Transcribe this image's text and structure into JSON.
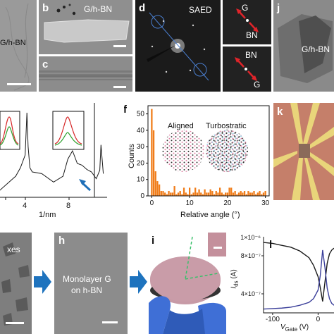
{
  "panels": {
    "a": {
      "text": "G/h-BN"
    },
    "b": {
      "label": "b",
      "text": "G/h-BN"
    },
    "c": {
      "label": "c"
    },
    "d": {
      "label": "d",
      "text": "SAED",
      "inset_top": {
        "upper": "G",
        "lower": "BN"
      },
      "inset_bottom": {
        "upper": "BN",
        "lower": "G"
      }
    },
    "j": {
      "label": "j",
      "text": "G/h-BN"
    },
    "e": {
      "xlabel": "1/nm",
      "ticks": [
        "4",
        "8"
      ]
    },
    "f": {
      "label": "f",
      "ylabel": "Counts",
      "xlabel": "Relative angle (°)",
      "legend_aligned": "Aligned",
      "legend_turbostratic": "Turbostratic"
    },
    "k": {
      "label": "k"
    },
    "g": {
      "text": "xes"
    },
    "h": {
      "label": "h",
      "line1": "Monolayer G",
      "line2": "on h-BN"
    },
    "i": {
      "label": "i"
    },
    "l": {
      "label": "l",
      "ylabel": "Ids (A)",
      "xlabel": "VGate (V)"
    }
  },
  "colors": {
    "histogram": "#f07d1a",
    "curve_black": "#1a1a1a",
    "curve_blue": "#3b3f9a",
    "arrow_blue": "#1e6fb8",
    "inset_green": "#2ca02c",
    "inset_red": "#d62728",
    "device_bg": "#c57f6a",
    "electrode": "#e9d57a",
    "wafer": "#c79aa6",
    "glove": "#3f6fd6"
  },
  "chart_data": [
    {
      "type": "bar",
      "title": "",
      "xlabel": "Relative angle (°)",
      "ylabel": "Counts",
      "xlim": [
        -1,
        31
      ],
      "ylim": [
        0,
        55
      ],
      "x_ticks": [
        0,
        10,
        20,
        30
      ],
      "y_ticks": [
        0,
        10,
        20,
        30,
        40,
        50
      ],
      "categories": [
        0,
        0.5,
        1,
        1.5,
        2,
        2.5,
        3,
        3.5,
        4,
        4.5,
        5,
        5.5,
        6,
        6.5,
        7,
        7.5,
        8,
        8.5,
        9,
        9.5,
        10,
        10.5,
        11,
        11.5,
        12,
        12.5,
        13,
        13.5,
        14,
        14.5,
        15,
        15.5,
        16,
        16.5,
        17,
        17.5,
        18,
        18.5,
        19,
        19.5,
        20,
        20.5,
        21,
        21.5,
        22,
        22.5,
        23,
        23.5,
        24,
        24.5,
        25,
        25.5,
        26,
        26.5,
        27,
        27.5,
        28,
        28.5,
        29,
        29.5,
        30
      ],
      "values": [
        53,
        40,
        15,
        9,
        7,
        3,
        3,
        2,
        1,
        3,
        2,
        2,
        6,
        1,
        2,
        3,
        1,
        5,
        2,
        1,
        5,
        1,
        2,
        5,
        2,
        4,
        2,
        1,
        4,
        2,
        2,
        4,
        3,
        1,
        3,
        2,
        5,
        2,
        1,
        2,
        2,
        5,
        5,
        2,
        3,
        1,
        2,
        3,
        2,
        3,
        1,
        3,
        2,
        2,
        3,
        1,
        2,
        3,
        1,
        2,
        3
      ]
    },
    {
      "type": "line",
      "title": "",
      "xlabel": "VGate (V)",
      "ylabel": "Ids (A)",
      "xlim": [
        -120,
        35
      ],
      "ylim": [
        2e-07,
        1e-06
      ],
      "x_ticks": [
        -100,
        0
      ],
      "y_ticks": [
        4e-07,
        8e-07
      ],
      "y_tick_labels": [
        "4×10⁻⁷",
        "8×10⁻⁷"
      ],
      "y_top_label": "1×10⁻⁶",
      "series": [
        {
          "color": "#1a1a1a",
          "x": [
            -120,
            -100,
            -80,
            -60,
            -40,
            -20,
            -10,
            0,
            5,
            10,
            15,
            20,
            25,
            30,
            35
          ],
          "y": [
            9.4e-07,
            9.3e-07,
            9.1e-07,
            8.9e-07,
            8.5e-07,
            7.8e-07,
            7e-07,
            5.8e-07,
            4.6e-07,
            3.2e-07,
            5.2e-07,
            7.2e-07,
            8.2e-07,
            8.6e-07,
            8.8e-07
          ]
        },
        {
          "color": "#3b3f9a",
          "x": [
            -120,
            -100,
            -80,
            -60,
            -40,
            -20,
            -10,
            0,
            5,
            10,
            15,
            20,
            25,
            30,
            35
          ],
          "y": [
            2.4e-07,
            2.45e-07,
            2.5e-07,
            2.6e-07,
            2.8e-07,
            3.1e-07,
            3.5e-07,
            4.4e-07,
            6e-07,
            8.6e-07,
            6.8e-07,
            4.6e-07,
            3.5e-07,
            3e-07,
            2.8e-07
          ]
        }
      ]
    },
    {
      "type": "line",
      "title": "",
      "xlabel": "1/nm",
      "x_ticks": [
        "4",
        "8"
      ],
      "series": [
        {
          "color": "#1a1a1a",
          "x": [
            1.2,
            2.0,
            2.8,
            3.2,
            3.6,
            3.75,
            3.85,
            4.0,
            4.2,
            5.0,
            6.0,
            6.8,
            7.2,
            7.6,
            8.0,
            8.4,
            8.8,
            9.2,
            9.6,
            9.9,
            10.0,
            10.2
          ],
          "y": [
            0.05,
            0.15,
            0.25,
            0.35,
            0.5,
            1.0,
            0.6,
            0.35,
            0.3,
            0.28,
            0.18,
            0.25,
            0.45,
            0.55,
            0.4,
            0.38,
            0.33,
            0.3,
            0.22,
            0.32,
            0.62,
            0.28
          ]
        }
      ]
    }
  ]
}
